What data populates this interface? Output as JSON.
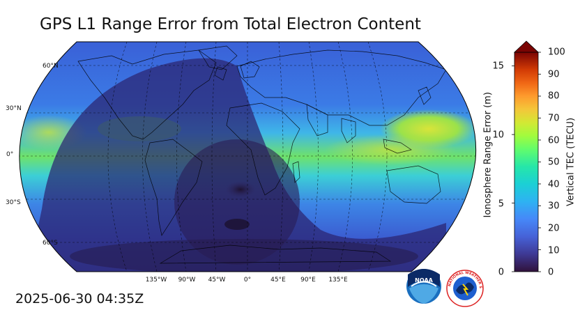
{
  "title": "GPS L1 Range Error from Total Electron Content",
  "timestamp": "2025-06-30 04:35Z",
  "map": {
    "projection": "Robinson",
    "latitude_labels": [
      "60°N",
      "30°N",
      "0°",
      "30°S",
      "60°S"
    ],
    "longitude_labels": [
      "135°W",
      "90°W",
      "45°W",
      "0°",
      "45°E",
      "90°E",
      "135°E"
    ]
  },
  "colorbar": {
    "left_axis_label": "Ionosphere Range Error (m)",
    "left_ticks": [
      "0",
      "5",
      "10",
      "15"
    ],
    "right_axis_label": "Vertical TEC (TECU)",
    "right_ticks": [
      "0",
      "10",
      "20",
      "30",
      "40",
      "50",
      "60",
      "70",
      "80",
      "90",
      "100"
    ],
    "extend": "max"
  },
  "logos": {
    "noaa_text": "NOAA",
    "nws_text": "NATIONAL WEATHER SERVICE"
  },
  "colors": {
    "low": "#2c1b4e",
    "mid": "#1fd5c8",
    "high": "#e6e23a",
    "max": "#7a0403"
  }
}
